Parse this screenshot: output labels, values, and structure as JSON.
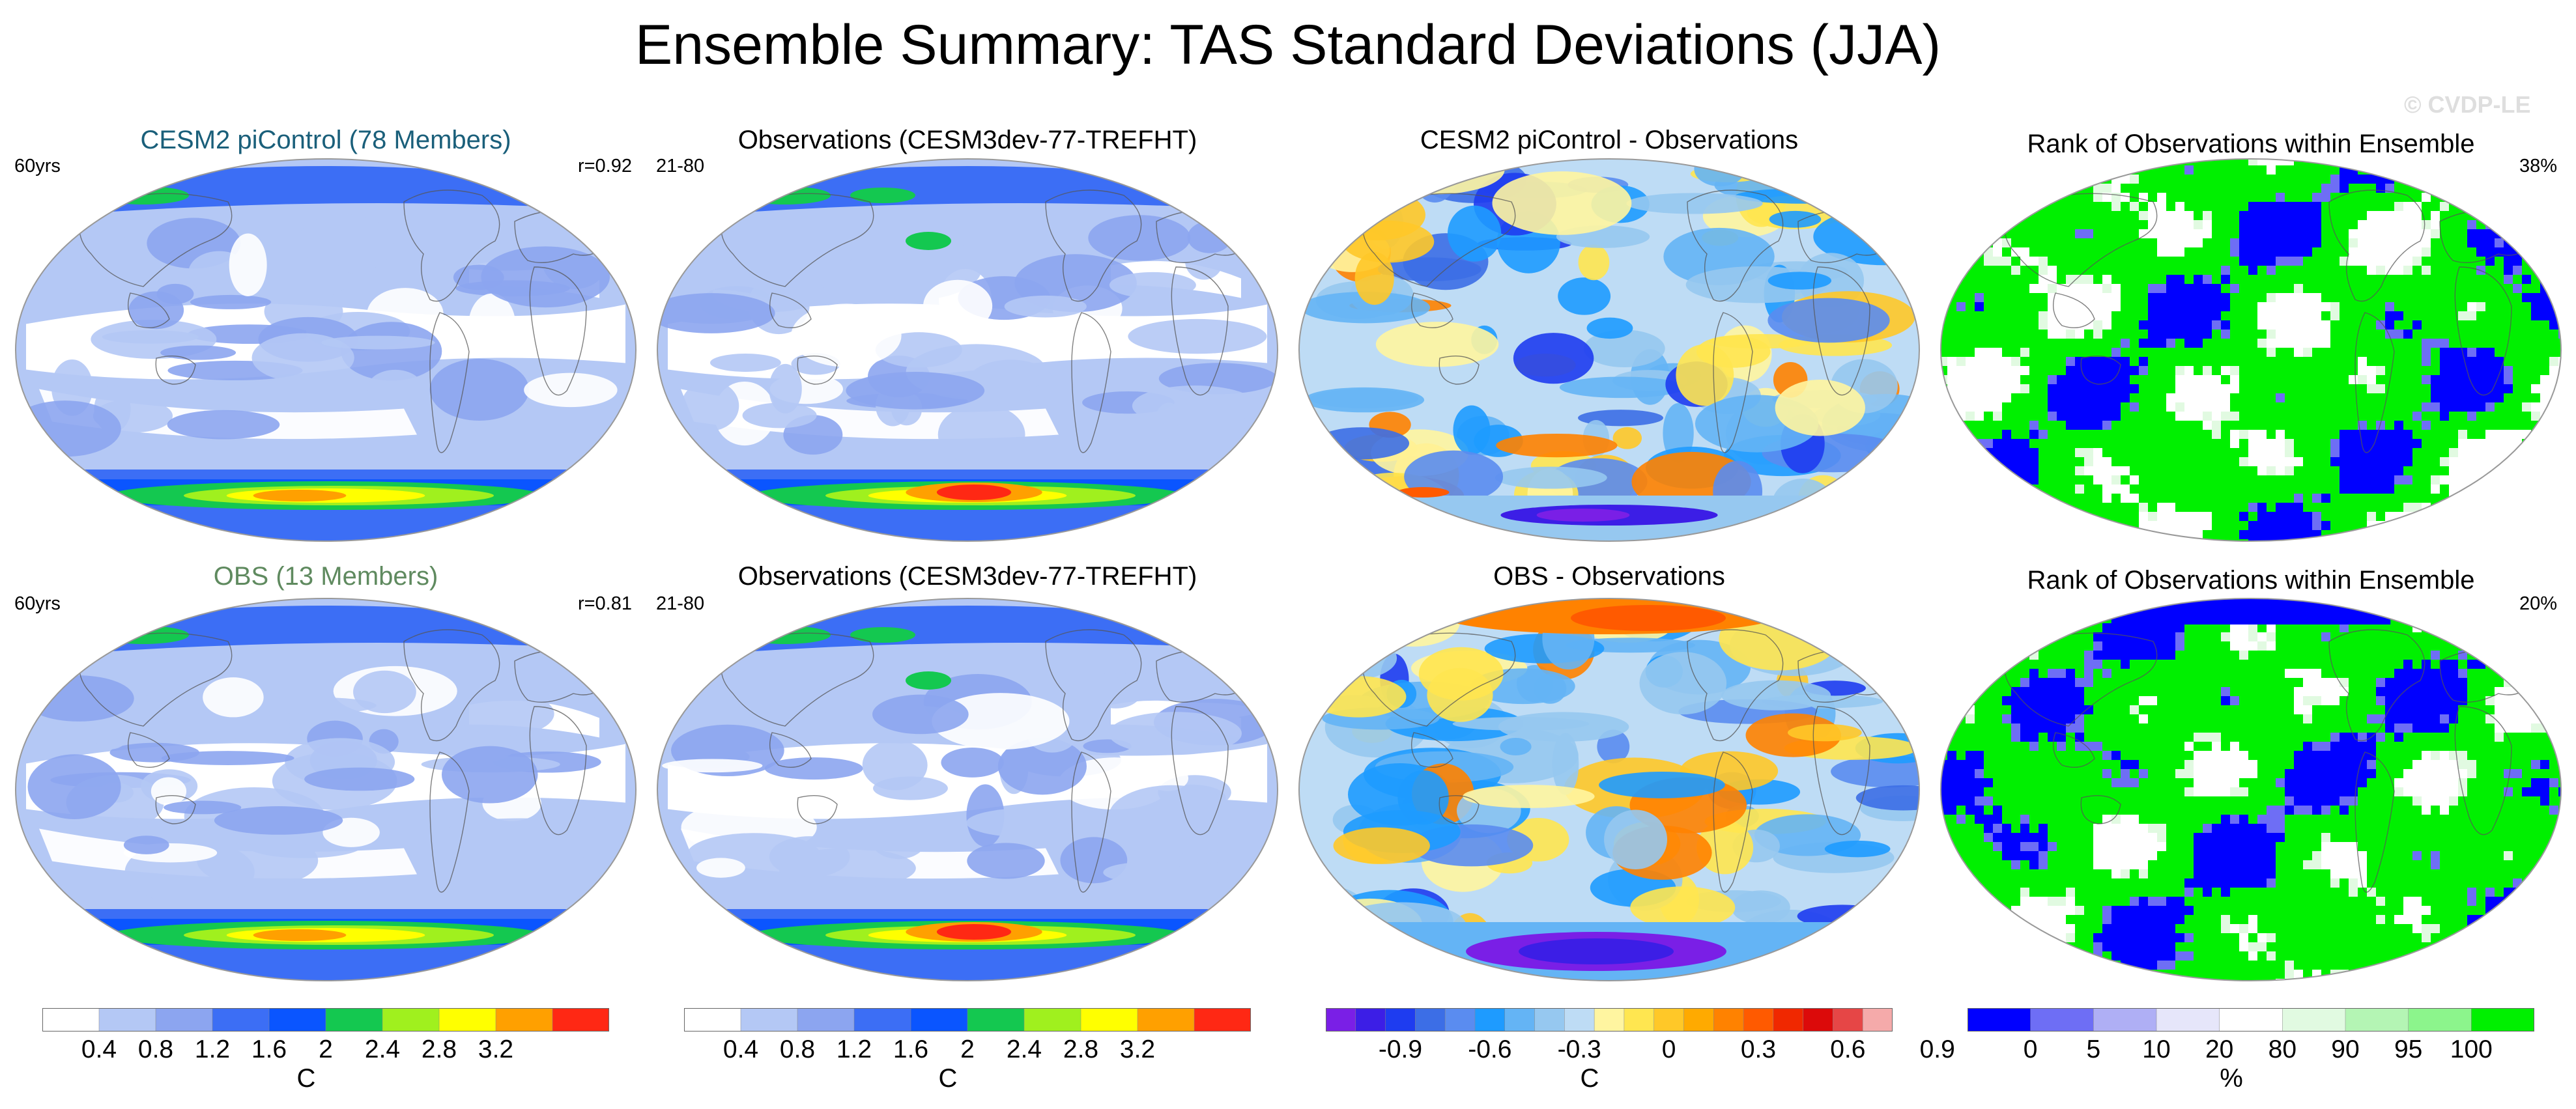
{
  "title": "Ensemble Summary: TAS Standard Deviations (JJA)",
  "watermark": "© CVDP-LE",
  "panels": [
    {
      "row": 0,
      "col": 0,
      "title": "CESM2 piControl (78 Members)",
      "title_color": "#1a5f7a",
      "left_label": "60yrs",
      "right_label": "r=0.92",
      "field": "sd_model"
    },
    {
      "row": 0,
      "col": 1,
      "title": "Observations (CESM3dev-77-TREFHT)",
      "title_color": "#000000",
      "left_label": "21-80",
      "right_label": "",
      "field": "sd_obs"
    },
    {
      "row": 0,
      "col": 2,
      "title": "CESM2 piControl - Observations",
      "title_color": "#000000",
      "left_label": "",
      "right_label": "",
      "field": "diff"
    },
    {
      "row": 0,
      "col": 3,
      "title": "Rank of Observations within Ensemble",
      "title_color": "#000000",
      "left_label": "",
      "right_label": "38%",
      "field": "rank1"
    },
    {
      "row": 1,
      "col": 0,
      "title": "OBS (13 Members)",
      "title_color": "#5f8a5f",
      "left_label": "60yrs",
      "right_label": "r=0.81",
      "field": "sd_obsens"
    },
    {
      "row": 1,
      "col": 1,
      "title": "Observations (CESM3dev-77-TREFHT)",
      "title_color": "#000000",
      "left_label": "21-80",
      "right_label": "",
      "field": "sd_obs2"
    },
    {
      "row": 1,
      "col": 2,
      "title": "OBS - Observations",
      "title_color": "#000000",
      "left_label": "",
      "right_label": "",
      "field": "diff2"
    },
    {
      "row": 1,
      "col": 3,
      "title": "Rank of Observations within Ensemble",
      "title_color": "#000000",
      "left_label": "",
      "right_label": "20%",
      "field": "rank2"
    }
  ],
  "colorbars": [
    {
      "name": "sd-colorbar-1",
      "unit": "C",
      "ticks": [
        "0.4",
        "0.8",
        "1.2",
        "1.6",
        "2",
        "2.4",
        "2.8",
        "3.2"
      ],
      "colors": [
        "#ffffff",
        "#b4c8f5",
        "#8ca5f0",
        "#3c6ef5",
        "#0a55ff",
        "#14c850",
        "#a0f01e",
        "#ffff00",
        "#ffa000",
        "#ff2814"
      ]
    },
    {
      "name": "sd-colorbar-2",
      "unit": "C",
      "ticks": [
        "0.4",
        "0.8",
        "1.2",
        "1.6",
        "2",
        "2.4",
        "2.8",
        "3.2"
      ],
      "colors": [
        "#ffffff",
        "#b4c8f5",
        "#8ca5f0",
        "#3c6ef5",
        "#0a55ff",
        "#14c850",
        "#a0f01e",
        "#ffff00",
        "#ffa000",
        "#ff2814"
      ]
    },
    {
      "name": "diff-colorbar",
      "unit": "C",
      "ticks": [
        "-0.9",
        "-0.6",
        "-0.3",
        "0",
        "0.3",
        "0.6",
        "0.9"
      ],
      "colors": [
        "#7a1fe6",
        "#3c1ee6",
        "#1e3cf0",
        "#3c6ee6",
        "#5a8cf0",
        "#1e9bff",
        "#64b4f5",
        "#96c8f0",
        "#bedcf5",
        "#fff5a0",
        "#ffe650",
        "#ffc828",
        "#ffaa00",
        "#ff8200",
        "#ff5a00",
        "#f02800",
        "#dc0a0a",
        "#e64646",
        "#f5aaaa"
      ]
    },
    {
      "name": "rank-colorbar",
      "unit": "%",
      "ticks": [
        "0",
        "5",
        "10",
        "20",
        "80",
        "90",
        "95",
        "100"
      ],
      "colors": [
        "#0000ff",
        "#6e6ef5",
        "#afaff5",
        "#e6e6fa",
        "#ffffff",
        "#e1fae1",
        "#b4f5b4",
        "#8cf58c",
        "#00f000"
      ]
    }
  ],
  "chart_data": {
    "type": "heatmap",
    "title": "Ensemble Summary: TAS Standard Deviations (JJA)",
    "series": [
      {
        "name": "CESM2 piControl (78 Members)",
        "pattern_correlation": 0.92,
        "period": "60yrs",
        "units": "C",
        "range": [
          0,
          3.6
        ]
      },
      {
        "name": "Observations (CESM3dev-77-TREFHT)",
        "period": "21-80",
        "units": "C",
        "range": [
          0,
          3.6
        ]
      },
      {
        "name": "CESM2 piControl - Observations",
        "units": "C",
        "range": [
          -1.05,
          1.05
        ]
      },
      {
        "name": "Rank of Observations within Ensemble",
        "percent_in_range": 38,
        "units": "%",
        "range": [
          0,
          100
        ]
      },
      {
        "name": "OBS (13 Members)",
        "pattern_correlation": 0.81,
        "period": "60yrs",
        "units": "C",
        "range": [
          0,
          3.6
        ]
      },
      {
        "name": "Observations (CESM3dev-77-TREFHT)",
        "period": "21-80",
        "units": "C",
        "range": [
          0,
          3.6
        ]
      },
      {
        "name": "OBS - Observations",
        "units": "C",
        "range": [
          -1.05,
          1.05
        ]
      },
      {
        "name": "Rank of Observations within Ensemble",
        "percent_in_range": 20,
        "units": "%",
        "range": [
          0,
          100
        ]
      }
    ],
    "sd_levels": [
      0.4,
      0.8,
      1.2,
      1.6,
      2,
      2.4,
      2.8,
      3.2
    ],
    "diff_levels": [
      -0.9,
      -0.6,
      -0.3,
      0,
      0.3,
      0.6,
      0.9
    ],
    "rank_levels": [
      0,
      5,
      10,
      20,
      80,
      90,
      95,
      100
    ]
  }
}
